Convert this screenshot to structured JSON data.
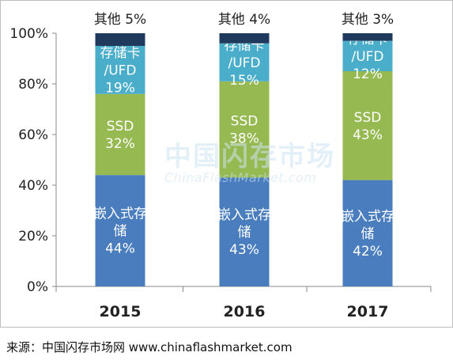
{
  "chart_data": {
    "type": "bar",
    "stacked": true,
    "categories": [
      "2015",
      "2016",
      "2017"
    ],
    "series": [
      {
        "key": "embedded",
        "label_lines": [
          "嵌入式存",
          "储"
        ],
        "values": [
          44,
          43,
          42
        ],
        "color": "#4a7dbe"
      },
      {
        "key": "ssd",
        "label_lines": [
          "SSD"
        ],
        "values": [
          32,
          38,
          43
        ],
        "color": "#96b951"
      },
      {
        "key": "card",
        "label_lines": [
          "存储卡",
          "/UFD"
        ],
        "values": [
          19,
          15,
          12
        ],
        "color": "#4aaecb"
      },
      {
        "key": "other",
        "label_lines": [
          "其他"
        ],
        "values": [
          5,
          4,
          3
        ],
        "color": "#1f3a5c"
      }
    ],
    "y_ticks": [
      "0%",
      "20%",
      "40%",
      "60%",
      "80%",
      "100%"
    ],
    "ylim": [
      0,
      100
    ],
    "grid": false
  },
  "watermark": {
    "main": "中国闪存市场",
    "sub": "ChinaFlashMarket.com"
  },
  "source": "来源：中国闪存市场网 www.chinaflashmarket.com"
}
